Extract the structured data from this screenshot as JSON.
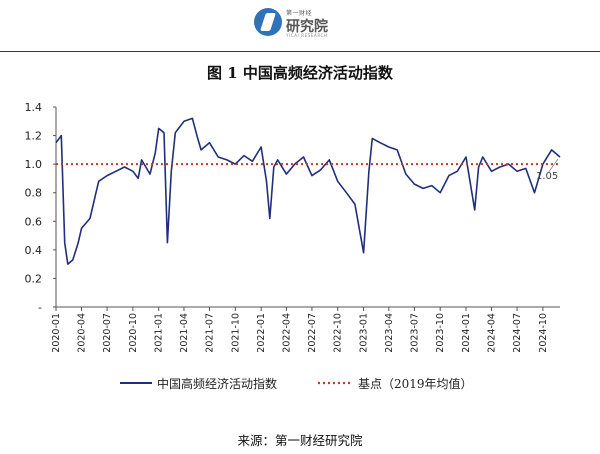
{
  "header": {
    "logo_small": "第一财经",
    "logo_text": "研究院",
    "logo_sub": "YICAI RESEARCH"
  },
  "source": "来源：第一财经研究院",
  "colors": {
    "series": "#1f2f7a",
    "baseline": "#c0392b",
    "axis": "#555555"
  },
  "chart_data": {
    "type": "line",
    "title": "图 1  中国高频经济活动指数",
    "xlabel": "",
    "ylabel": "",
    "ylim": [
      0,
      1.4
    ],
    "yticks": [
      "-",
      "0.2",
      "0.4",
      "0.6",
      "0.8",
      "1.0",
      "1.2",
      "1.4"
    ],
    "x_tick_labels": [
      "2020-01",
      "2020-04",
      "2020-07",
      "2020-10",
      "2021-01",
      "2021-04",
      "2021-07",
      "2021-10",
      "2022-01",
      "2022-04",
      "2022-07",
      "2022-10",
      "2023-01",
      "2023-04",
      "2023-07",
      "2023-10",
      "2024-01",
      "2024-04",
      "2024-07",
      "2024-10"
    ],
    "x_range": [
      "2020-01",
      "2024-12"
    ],
    "grid": false,
    "legend_position": "bottom",
    "series": [
      {
        "name": "中国高频经济活动指数",
        "style": "solid",
        "points": [
          [
            "2020-01",
            1.15
          ],
          [
            "2020-01-20",
            1.2
          ],
          [
            "2020-02",
            0.45
          ],
          [
            "2020-02-12",
            0.3
          ],
          [
            "2020-03",
            0.33
          ],
          [
            "2020-03-20",
            0.45
          ],
          [
            "2020-04",
            0.55
          ],
          [
            "2020-05",
            0.62
          ],
          [
            "2020-05-20",
            0.78
          ],
          [
            "2020-06",
            0.88
          ],
          [
            "2020-07",
            0.92
          ],
          [
            "2020-08",
            0.95
          ],
          [
            "2020-09",
            0.98
          ],
          [
            "2020-10",
            0.95
          ],
          [
            "2020-10-20",
            0.9
          ],
          [
            "2020-11",
            1.03
          ],
          [
            "2020-12",
            0.93
          ],
          [
            "2020-12-20",
            1.08
          ],
          [
            "2021-01",
            1.25
          ],
          [
            "2021-01-20",
            1.22
          ],
          [
            "2021-02",
            0.45
          ],
          [
            "2021-02-15",
            0.95
          ],
          [
            "2021-03",
            1.22
          ],
          [
            "2021-04",
            1.3
          ],
          [
            "2021-05",
            1.32
          ],
          [
            "2021-05-20",
            1.18
          ],
          [
            "2021-06",
            1.1
          ],
          [
            "2021-07",
            1.15
          ],
          [
            "2021-08",
            1.05
          ],
          [
            "2021-09",
            1.03
          ],
          [
            "2021-10",
            1.0
          ],
          [
            "2021-11",
            1.06
          ],
          [
            "2021-12",
            1.02
          ],
          [
            "2022-01",
            1.12
          ],
          [
            "2022-01-20",
            0.88
          ],
          [
            "2022-02",
            0.62
          ],
          [
            "2022-02-15",
            0.98
          ],
          [
            "2022-03",
            1.03
          ],
          [
            "2022-04",
            0.93
          ],
          [
            "2022-05",
            1.0
          ],
          [
            "2022-06",
            1.05
          ],
          [
            "2022-07",
            0.92
          ],
          [
            "2022-08",
            0.96
          ],
          [
            "2022-09",
            1.03
          ],
          [
            "2022-10",
            0.88
          ],
          [
            "2022-11",
            0.8
          ],
          [
            "2022-12",
            0.72
          ],
          [
            "2023-01",
            0.38
          ],
          [
            "2023-01-20",
            0.95
          ],
          [
            "2023-02",
            1.18
          ],
          [
            "2023-03",
            1.15
          ],
          [
            "2023-04",
            1.12
          ],
          [
            "2023-05",
            1.1
          ],
          [
            "2023-06",
            0.93
          ],
          [
            "2023-07",
            0.86
          ],
          [
            "2023-08",
            0.83
          ],
          [
            "2023-09",
            0.85
          ],
          [
            "2023-10",
            0.8
          ],
          [
            "2023-11",
            0.92
          ],
          [
            "2023-12",
            0.95
          ],
          [
            "2024-01",
            1.05
          ],
          [
            "2024-02",
            0.68
          ],
          [
            "2024-02-15",
            0.98
          ],
          [
            "2024-03",
            1.05
          ],
          [
            "2024-04",
            0.95
          ],
          [
            "2024-05",
            0.98
          ],
          [
            "2024-06",
            1.0
          ],
          [
            "2024-07",
            0.95
          ],
          [
            "2024-08",
            0.97
          ],
          [
            "2024-09",
            0.8
          ],
          [
            "2024-10",
            1.0
          ],
          [
            "2024-11",
            1.1
          ],
          [
            "2024-12",
            1.05
          ]
        ]
      },
      {
        "name": "基点（2019年均值）",
        "style": "dotted",
        "points": [
          [
            "2020-01",
            1.0
          ],
          [
            "2024-12",
            1.0
          ]
        ]
      }
    ],
    "annotations": [
      {
        "text": "1.05",
        "x": "2024-12",
        "y": 1.05
      }
    ]
  }
}
